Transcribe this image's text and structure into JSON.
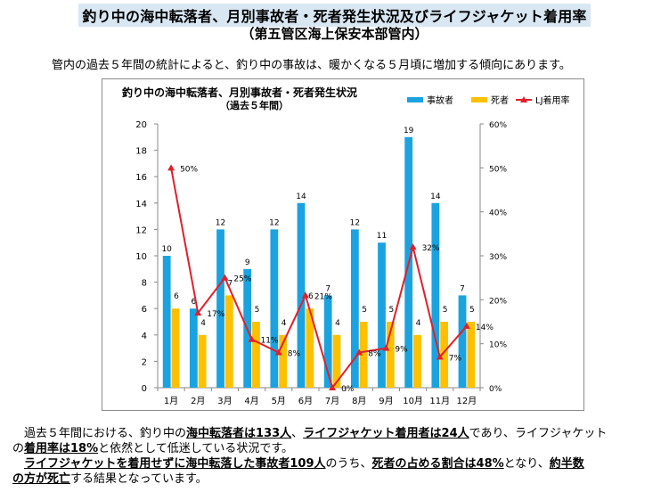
{
  "header": {
    "title": "釣り中の海中転落者、月別事故者・死者発生状況及びライフジャケット着用率",
    "subtitle": "（第五管区海上保安本部管内）"
  },
  "intro_text": "管内の過去５年間の統計によると、釣り中の事故は、暖かくなる５月頃に増加する傾向にあります。",
  "chart_data": {
    "type": "bar",
    "title": "釣り中の海中転落者、月別事故者・死者発生状況",
    "subtitle": "（過去５年間）",
    "categories": [
      "1月",
      "2月",
      "3月",
      "4月",
      "5月",
      "6月",
      "7月",
      "8月",
      "9月",
      "10月",
      "11月",
      "12月"
    ],
    "series": [
      {
        "name": "事故者",
        "type": "bar",
        "color": "#1aa3e0",
        "values": [
          10,
          6,
          12,
          9,
          12,
          14,
          7,
          12,
          11,
          19,
          14,
          7
        ]
      },
      {
        "name": "死者",
        "type": "bar",
        "color": "#ffc000",
        "values": [
          6,
          4,
          7,
          5,
          4,
          6,
          4,
          5,
          5,
          4,
          5,
          5
        ]
      },
      {
        "name": "LJ着用率",
        "type": "line",
        "axis": "right",
        "color": "#e0202a",
        "values": [
          50,
          17,
          25,
          11,
          8,
          21,
          0,
          8,
          9,
          32,
          7,
          14
        ]
      }
    ],
    "y_left": {
      "min": 0,
      "max": 20,
      "step": 2
    },
    "y_right": {
      "min": 0,
      "max": 60,
      "step": 10,
      "suffix": "%"
    },
    "bar_labels_left": [
      "10",
      "6",
      "12",
      "9",
      "12",
      "14",
      "7",
      "12",
      "11",
      "19",
      "14",
      "7"
    ],
    "bar_labels_right": [
      "6",
      "4",
      "7",
      "5",
      "4",
      "6",
      "4",
      "5",
      "5",
      "4",
      "5",
      "5"
    ],
    "line_labels": [
      "50%",
      "17%",
      "25%",
      "11%",
      "8%",
      "21%",
      "0%",
      "8%",
      "9%",
      "32%",
      "7%",
      "14%"
    ],
    "grid": false,
    "legend_position": "top-right"
  },
  "summary": {
    "l1_a": "過去５年間における、釣り中の",
    "l1_b": "海中転落者は133人",
    "l1_c": "、",
    "l1_d": "ライフジャケット着用者は24人",
    "l1_e": "であり、ライフジャケット",
    "l2_a": "の",
    "l2_b": "着用率は18%",
    "l2_c": "と依然として低迷している状況です。",
    "l3_a": "ライフジャケットを着用せずに海中転落した事故者109人",
    "l3_b": "のうち、",
    "l3_c": "死者の占める割合は48%",
    "l3_d": "となり、",
    "l3_e": "約半数",
    "l4_a": "の方が死亡",
    "l4_b": "する結果となっています。"
  }
}
